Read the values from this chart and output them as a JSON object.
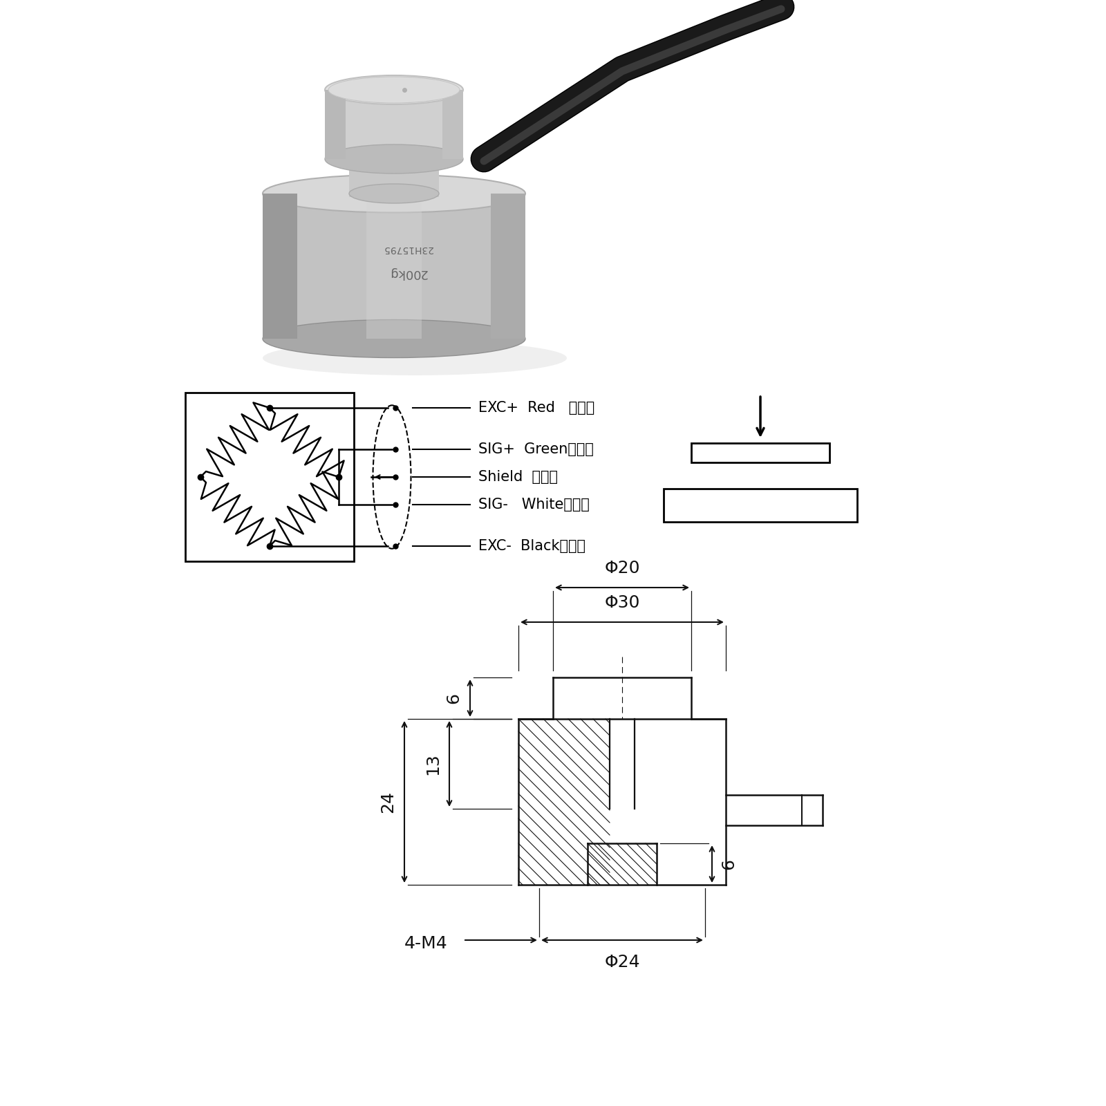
{
  "bg_color": "#ffffff",
  "wiring_labels": [
    [
      "EXC+",
      "Red",
      "（红）"
    ],
    [
      "SIG+",
      "Green",
      "（绿）"
    ],
    [
      "Shield",
      "屏蔽线",
      ""
    ],
    [
      "SIG-",
      "White",
      "（白）"
    ],
    [
      "EXC-",
      "Black",
      "（黑）"
    ]
  ],
  "dim_phi30": "Φ30",
  "dim_phi20": "Φ20",
  "dim_phi24": "Φ24",
  "dim_6a": "6",
  "dim_24": "24",
  "dim_13": "13",
  "dim_6b": "6",
  "dim_4m4": "4-M4"
}
